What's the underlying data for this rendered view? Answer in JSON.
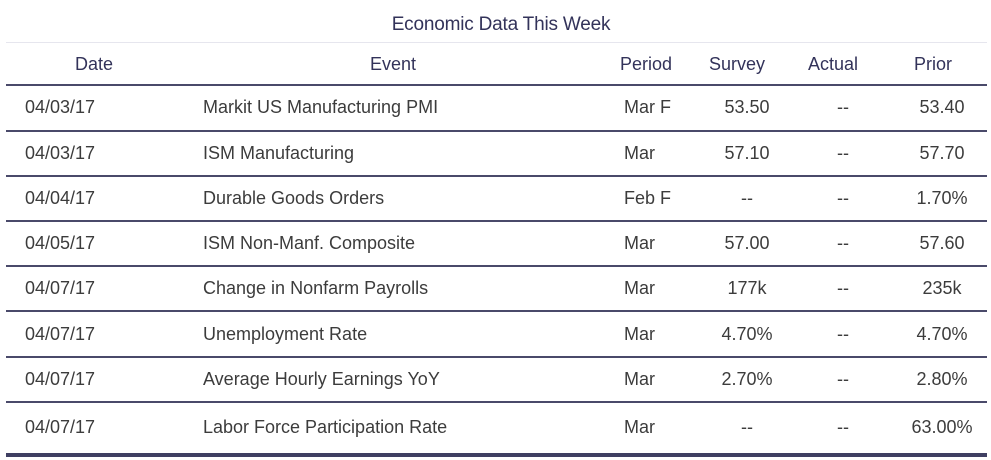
{
  "title": "Economic Data This Week",
  "columns": {
    "date": "Date",
    "event": "Event",
    "period": "Period",
    "survey": "Survey",
    "actual": "Actual",
    "prior": "Prior"
  },
  "rows": [
    {
      "date": "04/03/17",
      "event": "Markit US Manufacturing PMI",
      "period": "Mar F",
      "survey": "53.50",
      "actual": "--",
      "prior": "53.40"
    },
    {
      "date": "04/03/17",
      "event": "ISM Manufacturing",
      "period": "Mar",
      "survey": "57.10",
      "actual": "--",
      "prior": "57.70"
    },
    {
      "date": "04/04/17",
      "event": "Durable Goods Orders",
      "period": "Feb F",
      "survey": "--",
      "actual": "--",
      "prior": "1.70%"
    },
    {
      "date": "04/05/17",
      "event": "ISM Non-Manf. Composite",
      "period": "Mar",
      "survey": "57.00",
      "actual": "--",
      "prior": "57.60"
    },
    {
      "date": "04/07/17",
      "event": "Change in Nonfarm Payrolls",
      "period": "Mar",
      "survey": "177k",
      "actual": "--",
      "prior": "235k"
    },
    {
      "date": "04/07/17",
      "event": "Unemployment Rate",
      "period": "Mar",
      "survey": "4.70%",
      "actual": "--",
      "prior": "4.70%"
    },
    {
      "date": "04/07/17",
      "event": "Average Hourly Earnings YoY",
      "period": "Mar",
      "survey": "2.70%",
      "actual": "--",
      "prior": "2.80%"
    },
    {
      "date": "04/07/17",
      "event": "Labor Force Participation Rate",
      "period": "Mar",
      "survey": "--",
      "actual": "--",
      "prior": "63.00%"
    }
  ],
  "colors": {
    "header_text": "#33335a",
    "body_text": "#3c3c3c",
    "rule": "#4a4a6a"
  }
}
